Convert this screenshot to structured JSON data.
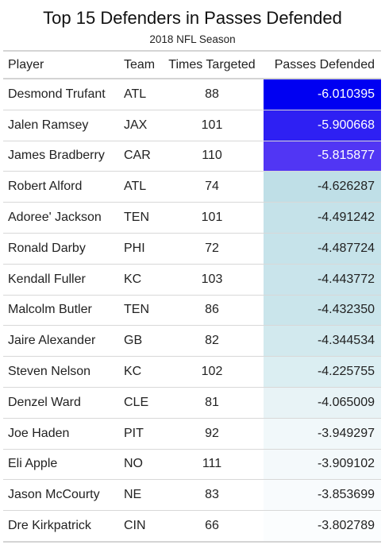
{
  "chart_data": {
    "type": "table",
    "title": "Top 15 Defenders in Passes Defended",
    "subtitle": "2018 NFL Season",
    "columns": [
      "Player",
      "Team",
      "Times Targeted",
      "Passes Defended"
    ],
    "rows": [
      {
        "player": "Desmond Trufant",
        "team": "ATL",
        "targeted": "88",
        "pd": "-6.010395",
        "color": "#0000f2",
        "text_color": "#ffffff"
      },
      {
        "player": "Jalen Ramsey",
        "team": "JAX",
        "targeted": "101",
        "pd": "-5.900668",
        "color": "#2e20f3",
        "text_color": "#ffffff"
      },
      {
        "player": "James Bradberry",
        "team": "CAR",
        "targeted": "110",
        "pd": "-5.815877",
        "color": "#5136f4",
        "text_color": "#ffffff"
      },
      {
        "player": "Robert Alford",
        "team": "ATL",
        "targeted": "74",
        "pd": "-4.626287",
        "color": "#bfdfe7",
        "text_color": "#222222"
      },
      {
        "player": "Adoree' Jackson",
        "team": "TEN",
        "targeted": "101",
        "pd": "-4.491242",
        "color": "#c5e2e9",
        "text_color": "#222222"
      },
      {
        "player": "Ronald Darby",
        "team": "PHI",
        "targeted": "72",
        "pd": "-4.487724",
        "color": "#c6e3ea",
        "text_color": "#222222"
      },
      {
        "player": "Kendall Fuller",
        "team": "KC",
        "targeted": "103",
        "pd": "-4.443772",
        "color": "#c9e4eb",
        "text_color": "#222222"
      },
      {
        "player": "Malcolm Butler",
        "team": "TEN",
        "targeted": "86",
        "pd": "-4.432350",
        "color": "#cae5eb",
        "text_color": "#222222"
      },
      {
        "player": "Jaire Alexander",
        "team": "GB",
        "targeted": "82",
        "pd": "-4.344534",
        "color": "#d2e9ee",
        "text_color": "#222222"
      },
      {
        "player": "Steven Nelson",
        "team": "KC",
        "targeted": "102",
        "pd": "-4.225755",
        "color": "#dbeef2",
        "text_color": "#222222"
      },
      {
        "player": "Denzel Ward",
        "team": "CLE",
        "targeted": "81",
        "pd": "-4.065009",
        "color": "#e8f3f6",
        "text_color": "#222222"
      },
      {
        "player": "Joe Haden",
        "team": "PIT",
        "targeted": "92",
        "pd": "-3.949297",
        "color": "#f1f8fa",
        "text_color": "#222222"
      },
      {
        "player": "Eli Apple",
        "team": "NO",
        "targeted": "111",
        "pd": "-3.909102",
        "color": "#f4f9fb",
        "text_color": "#222222"
      },
      {
        "player": "Jason McCourty",
        "team": "NE",
        "targeted": "83",
        "pd": "-3.853699",
        "color": "#f8fbfd",
        "text_color": "#222222"
      },
      {
        "player": "Dre Kirkpatrick",
        "team": "CIN",
        "targeted": "66",
        "pd": "-3.802789",
        "color": "#fbfdfe",
        "text_color": "#222222"
      }
    ]
  }
}
